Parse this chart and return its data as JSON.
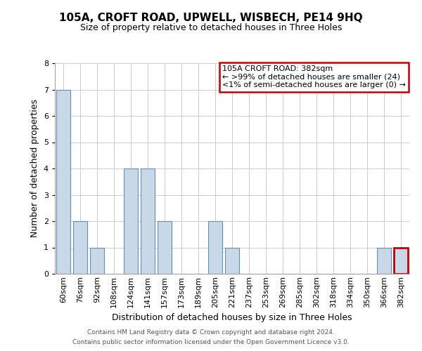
{
  "title": "105A, CROFT ROAD, UPWELL, WISBECH, PE14 9HQ",
  "subtitle": "Size of property relative to detached houses in Three Holes",
  "xlabel": "Distribution of detached houses by size in Three Holes",
  "ylabel": "Number of detached properties",
  "categories": [
    "60sqm",
    "76sqm",
    "92sqm",
    "108sqm",
    "124sqm",
    "141sqm",
    "157sqm",
    "173sqm",
    "189sqm",
    "205sqm",
    "221sqm",
    "237sqm",
    "253sqm",
    "269sqm",
    "285sqm",
    "302sqm",
    "318sqm",
    "334sqm",
    "350sqm",
    "366sqm",
    "382sqm"
  ],
  "values": [
    7,
    2,
    1,
    0,
    4,
    4,
    2,
    0,
    0,
    2,
    1,
    0,
    0,
    0,
    0,
    0,
    0,
    0,
    0,
    1,
    1
  ],
  "bar_color": "#c8d8e8",
  "bar_edge_color": "#6090b0",
  "highlight_bar_index": 20,
  "highlight_bar_color": "#c8d8e8",
  "highlight_bar_edge_color": "#c00000",
  "ylim": [
    0,
    8
  ],
  "yticks": [
    0,
    1,
    2,
    3,
    4,
    5,
    6,
    7,
    8
  ],
  "legend_box_edge_color": "#c00000",
  "legend_title": "105A CROFT ROAD: 382sqm",
  "legend_line1": "← >99% of detached houses are smaller (24)",
  "legend_line2": "<1% of semi-detached houses are larger (0) →",
  "footer_line1": "Contains HM Land Registry data © Crown copyright and database right 2024.",
  "footer_line2": "Contains public sector information licensed under the Open Government Licence v3.0.",
  "background_color": "#ffffff",
  "grid_color": "#cccccc",
  "title_fontsize": 11,
  "subtitle_fontsize": 9,
  "ylabel_fontsize": 9,
  "xlabel_fontsize": 9,
  "tick_fontsize": 8,
  "footer_fontsize": 6.5,
  "legend_fontsize": 8
}
